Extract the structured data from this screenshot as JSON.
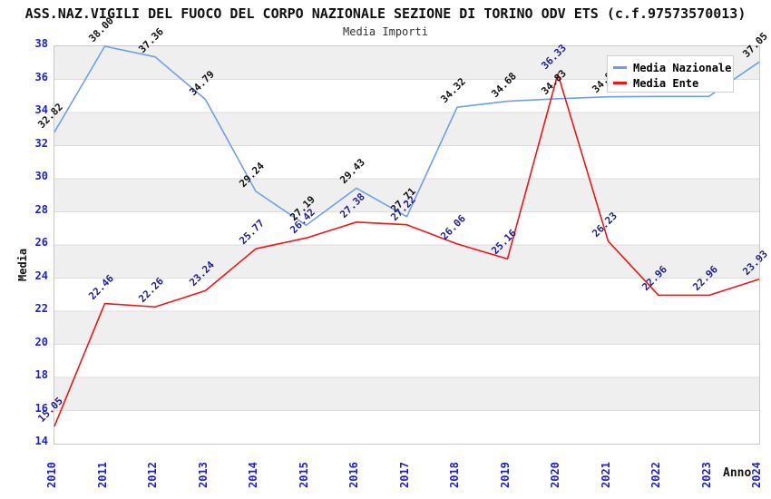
{
  "header": {
    "title": "ASS.NAZ.VIGILI DEL FUOCO DEL CORPO NAZIONALE SEZIONE DI TORINO ODV ETS (c.f.97573570013)",
    "subtitle": "Media Importi"
  },
  "legend": {
    "items": [
      {
        "label": "Media Nazionale",
        "color": "#6f9fe8"
      },
      {
        "label": "Media Ente",
        "color": "#f41414"
      }
    ]
  },
  "colors": {
    "band_gray": "#efefef",
    "gridline": "#dcdcdc",
    "plot_border": "#c9c9c9",
    "tick_label_blue": "#1e1ed2",
    "national_series_line": "#6f9fe8",
    "national_series_label": "#111111",
    "ente_series_line": "#f41414",
    "ente_series_label": "#1e1e96"
  },
  "chart_data": {
    "type": "line",
    "title": "ASS.NAZ.VIGILI DEL FUOCO DEL CORPO NAZIONALE SEZIONE DI TORINO ODV ETS (c.f.97573570013)",
    "subtitle": "Media Importi",
    "xlabel": "Anno",
    "ylabel": "Media",
    "ylim": [
      14,
      38
    ],
    "ytick_step": 2,
    "grid": "horizontal-bands-alternating",
    "legend_position": "top-right-inside",
    "x": [
      "2010",
      "2011",
      "2012",
      "2013",
      "2014",
      "2015",
      "2016",
      "2017",
      "2018",
      "2019",
      "2020",
      "2021",
      "2022",
      "2023",
      "2024"
    ],
    "series": [
      {
        "name": "Media Nazionale",
        "color": "#6f9fe8",
        "label_color": "#111111",
        "values": [
          32.82,
          38.0,
          37.36,
          34.79,
          29.24,
          27.19,
          29.43,
          27.71,
          34.32,
          34.68,
          34.83,
          34.95,
          34.97,
          34.97,
          37.05
        ],
        "labels": [
          "32.82",
          "38.00",
          "37.36",
          "34.79",
          "29.24",
          "27.19",
          "29.43",
          "27.71",
          "34.32",
          "34.68",
          "34.83",
          "34.95",
          "34.97",
          "34.97",
          "37.05"
        ],
        "labels_occluded_by_legend": [
          "2021",
          "2022",
          "2023"
        ]
      },
      {
        "name": "Media Ente",
        "color": "#f41414",
        "label_color": "#1e1e96",
        "values": [
          15.05,
          22.46,
          22.26,
          23.24,
          25.77,
          26.42,
          27.38,
          27.22,
          26.06,
          25.16,
          36.33,
          26.23,
          22.96,
          22.96,
          23.93
        ],
        "labels": [
          "15.05",
          "22.46",
          "22.26",
          "23.24",
          "25.77",
          "26.42",
          "27.38",
          "27.22",
          "26.06",
          "25.16",
          "36.33",
          "26.23",
          "22.96",
          "22.96",
          "23.93"
        ]
      }
    ]
  }
}
